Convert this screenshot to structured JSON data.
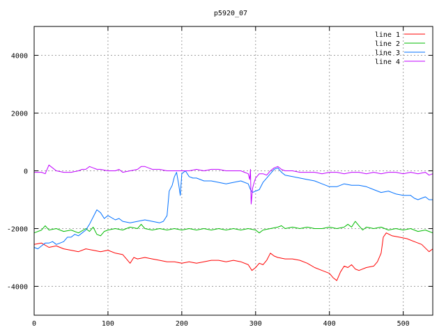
{
  "chart_data": {
    "type": "line",
    "title": "p5920_07",
    "xlabel": "",
    "ylabel": "",
    "xlim": [
      0,
      540
    ],
    "ylim": [
      -5000,
      5000
    ],
    "x_ticks": [
      0,
      100,
      200,
      300,
      400,
      500
    ],
    "y_ticks": [
      -4000,
      -2000,
      0,
      2000,
      4000
    ],
    "grid": true,
    "legend_position": "top-right",
    "series": [
      {
        "name": "line 1",
        "color": "#ff0000",
        "points": [
          [
            0,
            -2550
          ],
          [
            10,
            -2500
          ],
          [
            20,
            -2650
          ],
          [
            30,
            -2600
          ],
          [
            40,
            -2700
          ],
          [
            50,
            -2750
          ],
          [
            60,
            -2800
          ],
          [
            70,
            -2700
          ],
          [
            80,
            -2750
          ],
          [
            90,
            -2800
          ],
          [
            100,
            -2750
          ],
          [
            110,
            -2850
          ],
          [
            120,
            -2900
          ],
          [
            125,
            -3050
          ],
          [
            130,
            -3200
          ],
          [
            135,
            -3000
          ],
          [
            140,
            -3050
          ],
          [
            150,
            -3000
          ],
          [
            160,
            -3050
          ],
          [
            170,
            -3100
          ],
          [
            180,
            -3150
          ],
          [
            190,
            -3150
          ],
          [
            200,
            -3200
          ],
          [
            210,
            -3150
          ],
          [
            220,
            -3200
          ],
          [
            230,
            -3150
          ],
          [
            240,
            -3100
          ],
          [
            250,
            -3100
          ],
          [
            260,
            -3150
          ],
          [
            270,
            -3100
          ],
          [
            280,
            -3150
          ],
          [
            290,
            -3250
          ],
          [
            295,
            -3450
          ],
          [
            300,
            -3350
          ],
          [
            305,
            -3200
          ],
          [
            310,
            -3250
          ],
          [
            315,
            -3100
          ],
          [
            320,
            -2850
          ],
          [
            325,
            -2950
          ],
          [
            330,
            -3000
          ],
          [
            340,
            -3050
          ],
          [
            350,
            -3050
          ],
          [
            360,
            -3100
          ],
          [
            370,
            -3200
          ],
          [
            380,
            -3350
          ],
          [
            390,
            -3450
          ],
          [
            400,
            -3550
          ],
          [
            405,
            -3700
          ],
          [
            410,
            -3800
          ],
          [
            415,
            -3500
          ],
          [
            420,
            -3300
          ],
          [
            425,
            -3350
          ],
          [
            430,
            -3250
          ],
          [
            435,
            -3400
          ],
          [
            440,
            -3450
          ],
          [
            450,
            -3350
          ],
          [
            460,
            -3300
          ],
          [
            465,
            -3150
          ],
          [
            470,
            -2850
          ],
          [
            473,
            -2300
          ],
          [
            477,
            -2150
          ],
          [
            485,
            -2250
          ],
          [
            495,
            -2300
          ],
          [
            505,
            -2350
          ],
          [
            515,
            -2450
          ],
          [
            525,
            -2550
          ],
          [
            535,
            -2800
          ],
          [
            540,
            -2700
          ]
        ]
      },
      {
        "name": "line 2",
        "color": "#00bb00",
        "points": [
          [
            0,
            -2150
          ],
          [
            10,
            -2050
          ],
          [
            15,
            -1900
          ],
          [
            20,
            -2050
          ],
          [
            30,
            -2000
          ],
          [
            40,
            -2100
          ],
          [
            50,
            -2050
          ],
          [
            60,
            -2150
          ],
          [
            70,
            -2000
          ],
          [
            75,
            -2100
          ],
          [
            80,
            -1950
          ],
          [
            85,
            -2200
          ],
          [
            90,
            -2250
          ],
          [
            95,
            -2100
          ],
          [
            100,
            -2050
          ],
          [
            110,
            -2000
          ],
          [
            120,
            -2050
          ],
          [
            130,
            -1950
          ],
          [
            140,
            -2000
          ],
          [
            145,
            -1850
          ],
          [
            150,
            -2000
          ],
          [
            160,
            -2050
          ],
          [
            170,
            -2000
          ],
          [
            180,
            -2050
          ],
          [
            190,
            -2000
          ],
          [
            200,
            -2050
          ],
          [
            210,
            -2000
          ],
          [
            220,
            -2050
          ],
          [
            230,
            -2000
          ],
          [
            240,
            -2050
          ],
          [
            250,
            -2000
          ],
          [
            260,
            -2050
          ],
          [
            270,
            -2000
          ],
          [
            280,
            -2050
          ],
          [
            290,
            -2000
          ],
          [
            300,
            -2050
          ],
          [
            305,
            -2150
          ],
          [
            310,
            -2050
          ],
          [
            320,
            -2000
          ],
          [
            330,
            -1950
          ],
          [
            335,
            -1900
          ],
          [
            340,
            -2000
          ],
          [
            350,
            -1950
          ],
          [
            360,
            -2000
          ],
          [
            370,
            -1950
          ],
          [
            380,
            -2000
          ],
          [
            390,
            -2000
          ],
          [
            400,
            -1950
          ],
          [
            410,
            -2000
          ],
          [
            420,
            -1950
          ],
          [
            425,
            -1850
          ],
          [
            430,
            -1950
          ],
          [
            435,
            -1750
          ],
          [
            440,
            -1900
          ],
          [
            445,
            -2050
          ],
          [
            450,
            -1950
          ],
          [
            460,
            -2000
          ],
          [
            470,
            -1950
          ],
          [
            480,
            -2050
          ],
          [
            490,
            -2000
          ],
          [
            500,
            -2050
          ],
          [
            510,
            -2000
          ],
          [
            520,
            -2100
          ],
          [
            530,
            -2050
          ],
          [
            535,
            -2100
          ],
          [
            540,
            -2150
          ]
        ]
      },
      {
        "name": "line 3",
        "color": "#0070ff",
        "points": [
          [
            0,
            -2650
          ],
          [
            5,
            -2700
          ],
          [
            10,
            -2600
          ],
          [
            15,
            -2500
          ],
          [
            20,
            -2500
          ],
          [
            25,
            -2450
          ],
          [
            30,
            -2550
          ],
          [
            35,
            -2500
          ],
          [
            40,
            -2450
          ],
          [
            45,
            -2300
          ],
          [
            50,
            -2300
          ],
          [
            55,
            -2200
          ],
          [
            60,
            -2250
          ],
          [
            65,
            -2150
          ],
          [
            70,
            -2050
          ],
          [
            75,
            -1850
          ],
          [
            80,
            -1600
          ],
          [
            85,
            -1350
          ],
          [
            90,
            -1450
          ],
          [
            95,
            -1650
          ],
          [
            100,
            -1550
          ],
          [
            110,
            -1700
          ],
          [
            115,
            -1650
          ],
          [
            120,
            -1750
          ],
          [
            130,
            -1800
          ],
          [
            140,
            -1750
          ],
          [
            150,
            -1700
          ],
          [
            160,
            -1750
          ],
          [
            170,
            -1800
          ],
          [
            175,
            -1750
          ],
          [
            180,
            -1550
          ],
          [
            183,
            -700
          ],
          [
            187,
            -500
          ],
          [
            190,
            -200
          ],
          [
            193,
            -50
          ],
          [
            196,
            -500
          ],
          [
            198,
            -850
          ],
          [
            200,
            -100
          ],
          [
            205,
            0
          ],
          [
            210,
            -200
          ],
          [
            215,
            -250
          ],
          [
            220,
            -250
          ],
          [
            230,
            -350
          ],
          [
            240,
            -350
          ],
          [
            250,
            -400
          ],
          [
            260,
            -450
          ],
          [
            270,
            -400
          ],
          [
            280,
            -350
          ],
          [
            290,
            -450
          ],
          [
            293,
            -650
          ],
          [
            296,
            -750
          ],
          [
            300,
            -700
          ],
          [
            305,
            -650
          ],
          [
            310,
            -400
          ],
          [
            315,
            -250
          ],
          [
            320,
            -100
          ],
          [
            325,
            50
          ],
          [
            330,
            100
          ],
          [
            335,
            -50
          ],
          [
            340,
            -150
          ],
          [
            350,
            -200
          ],
          [
            360,
            -250
          ],
          [
            370,
            -300
          ],
          [
            380,
            -350
          ],
          [
            390,
            -450
          ],
          [
            400,
            -550
          ],
          [
            410,
            -550
          ],
          [
            420,
            -450
          ],
          [
            430,
            -500
          ],
          [
            440,
            -500
          ],
          [
            450,
            -550
          ],
          [
            460,
            -650
          ],
          [
            470,
            -750
          ],
          [
            480,
            -700
          ],
          [
            490,
            -800
          ],
          [
            500,
            -850
          ],
          [
            510,
            -850
          ],
          [
            515,
            -950
          ],
          [
            520,
            -1000
          ],
          [
            525,
            -950
          ],
          [
            530,
            -900
          ],
          [
            535,
            -1000
          ],
          [
            540,
            -1000
          ]
        ]
      },
      {
        "name": "line 4",
        "color": "#c000ff",
        "points": [
          [
            0,
            -50
          ],
          [
            5,
            -50
          ],
          [
            10,
            -50
          ],
          [
            15,
            -100
          ],
          [
            20,
            200
          ],
          [
            25,
            100
          ],
          [
            30,
            0
          ],
          [
            40,
            -50
          ],
          [
            50,
            -50
          ],
          [
            60,
            0
          ],
          [
            65,
            50
          ],
          [
            70,
            50
          ],
          [
            75,
            150
          ],
          [
            80,
            100
          ],
          [
            85,
            50
          ],
          [
            90,
            50
          ],
          [
            100,
            0
          ],
          [
            110,
            0
          ],
          [
            115,
            50
          ],
          [
            120,
            -50
          ],
          [
            130,
            0
          ],
          [
            140,
            50
          ],
          [
            145,
            150
          ],
          [
            150,
            150
          ],
          [
            155,
            100
          ],
          [
            160,
            50
          ],
          [
            170,
            50
          ],
          [
            180,
            0
          ],
          [
            190,
            0
          ],
          [
            200,
            0
          ],
          [
            210,
            0
          ],
          [
            220,
            50
          ],
          [
            230,
            0
          ],
          [
            240,
            50
          ],
          [
            250,
            50
          ],
          [
            260,
            0
          ],
          [
            270,
            0
          ],
          [
            280,
            0
          ],
          [
            285,
            -50
          ],
          [
            290,
            -100
          ],
          [
            292,
            -300
          ],
          [
            293,
            50
          ],
          [
            294,
            -1150
          ],
          [
            296,
            -600
          ],
          [
            298,
            -400
          ],
          [
            300,
            -250
          ],
          [
            305,
            -100
          ],
          [
            310,
            -100
          ],
          [
            315,
            -150
          ],
          [
            320,
            0
          ],
          [
            325,
            100
          ],
          [
            330,
            150
          ],
          [
            335,
            50
          ],
          [
            340,
            0
          ],
          [
            350,
            0
          ],
          [
            360,
            -50
          ],
          [
            370,
            -50
          ],
          [
            380,
            -50
          ],
          [
            390,
            -100
          ],
          [
            400,
            -50
          ],
          [
            410,
            -50
          ],
          [
            420,
            -100
          ],
          [
            430,
            -50
          ],
          [
            440,
            -50
          ],
          [
            450,
            -100
          ],
          [
            460,
            -50
          ],
          [
            470,
            -100
          ],
          [
            480,
            -50
          ],
          [
            490,
            -50
          ],
          [
            500,
            -100
          ],
          [
            510,
            -50
          ],
          [
            520,
            -100
          ],
          [
            530,
            -50
          ],
          [
            535,
            -150
          ],
          [
            540,
            -100
          ]
        ]
      }
    ]
  }
}
